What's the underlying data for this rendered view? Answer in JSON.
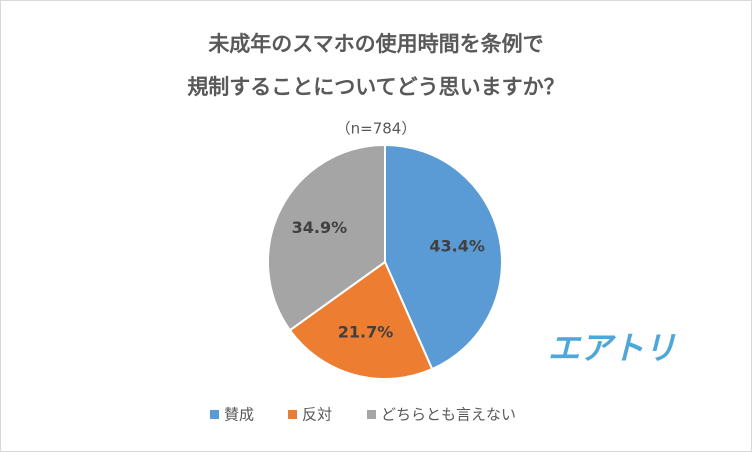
{
  "chart_data": {
    "type": "pie",
    "title": [
      "未成年のスマホの使用時間を条例で",
      "規制することについてどう思いますか？"
    ],
    "subtitle": "（n=784）",
    "categories": [
      "賛成",
      "反対",
      "どちらとも言えない"
    ],
    "values": [
      43.4,
      21.7,
      34.9
    ],
    "value_labels": [
      "43.4%",
      "21.7%",
      "34.9%"
    ],
    "colors": [
      "#5b9bd5",
      "#ed7d31",
      "#a5a5a5"
    ],
    "logo": "エアトリ"
  }
}
